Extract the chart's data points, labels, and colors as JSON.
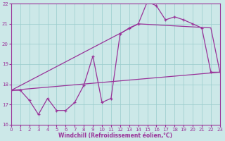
{
  "background_color": "#cce8e8",
  "grid_color": "#99cccc",
  "line_color": "#993399",
  "xlim": [
    0,
    23
  ],
  "ylim": [
    16,
    22
  ],
  "xticks": [
    0,
    1,
    2,
    3,
    4,
    5,
    6,
    7,
    8,
    9,
    10,
    11,
    12,
    13,
    14,
    15,
    16,
    17,
    18,
    19,
    20,
    21,
    22,
    23
  ],
  "yticks": [
    16,
    17,
    18,
    19,
    20,
    21,
    22
  ],
  "xlabel": "Windchill (Refroidissement éolien,°C)",
  "series1_x": [
    0,
    1,
    2,
    3,
    4,
    5,
    6,
    7,
    8,
    9,
    10,
    11,
    12,
    13,
    14,
    15,
    16,
    17,
    18,
    19,
    20,
    21,
    22,
    23
  ],
  "series1_y": [
    17.7,
    17.7,
    17.2,
    16.5,
    17.3,
    16.7,
    16.7,
    17.1,
    17.95,
    19.4,
    17.1,
    17.3,
    20.5,
    20.8,
    21.0,
    22.1,
    21.9,
    21.2,
    21.35,
    21.2,
    21.0,
    20.8,
    18.6,
    18.6
  ],
  "series2_x": [
    0,
    23
  ],
  "series2_y": [
    17.7,
    18.6
  ],
  "series3_x": [
    0,
    14,
    22,
    23
  ],
  "series3_y": [
    17.7,
    21.0,
    20.8,
    18.6
  ]
}
